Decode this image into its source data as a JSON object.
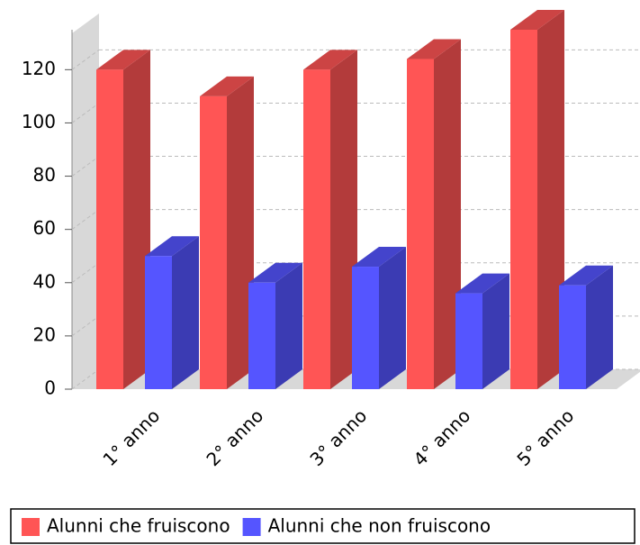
{
  "chart_data": {
    "type": "bar3d",
    "categories": [
      "1° anno",
      "2° anno",
      "3° anno",
      "4° anno",
      "5° anno"
    ],
    "series": [
      {
        "name": "Alunni che fruiscono",
        "color": "#ff5555",
        "values": [
          120,
          110,
          120,
          124,
          135
        ]
      },
      {
        "name": "Alunni che non fruiscono",
        "color": "#5555ff",
        "values": [
          50,
          40,
          46,
          36,
          39
        ]
      }
    ],
    "ylim": [
      0,
      135
    ],
    "yticks": [
      0,
      20,
      40,
      60,
      80,
      100,
      120
    ],
    "grid": true,
    "legend": "bottom"
  }
}
